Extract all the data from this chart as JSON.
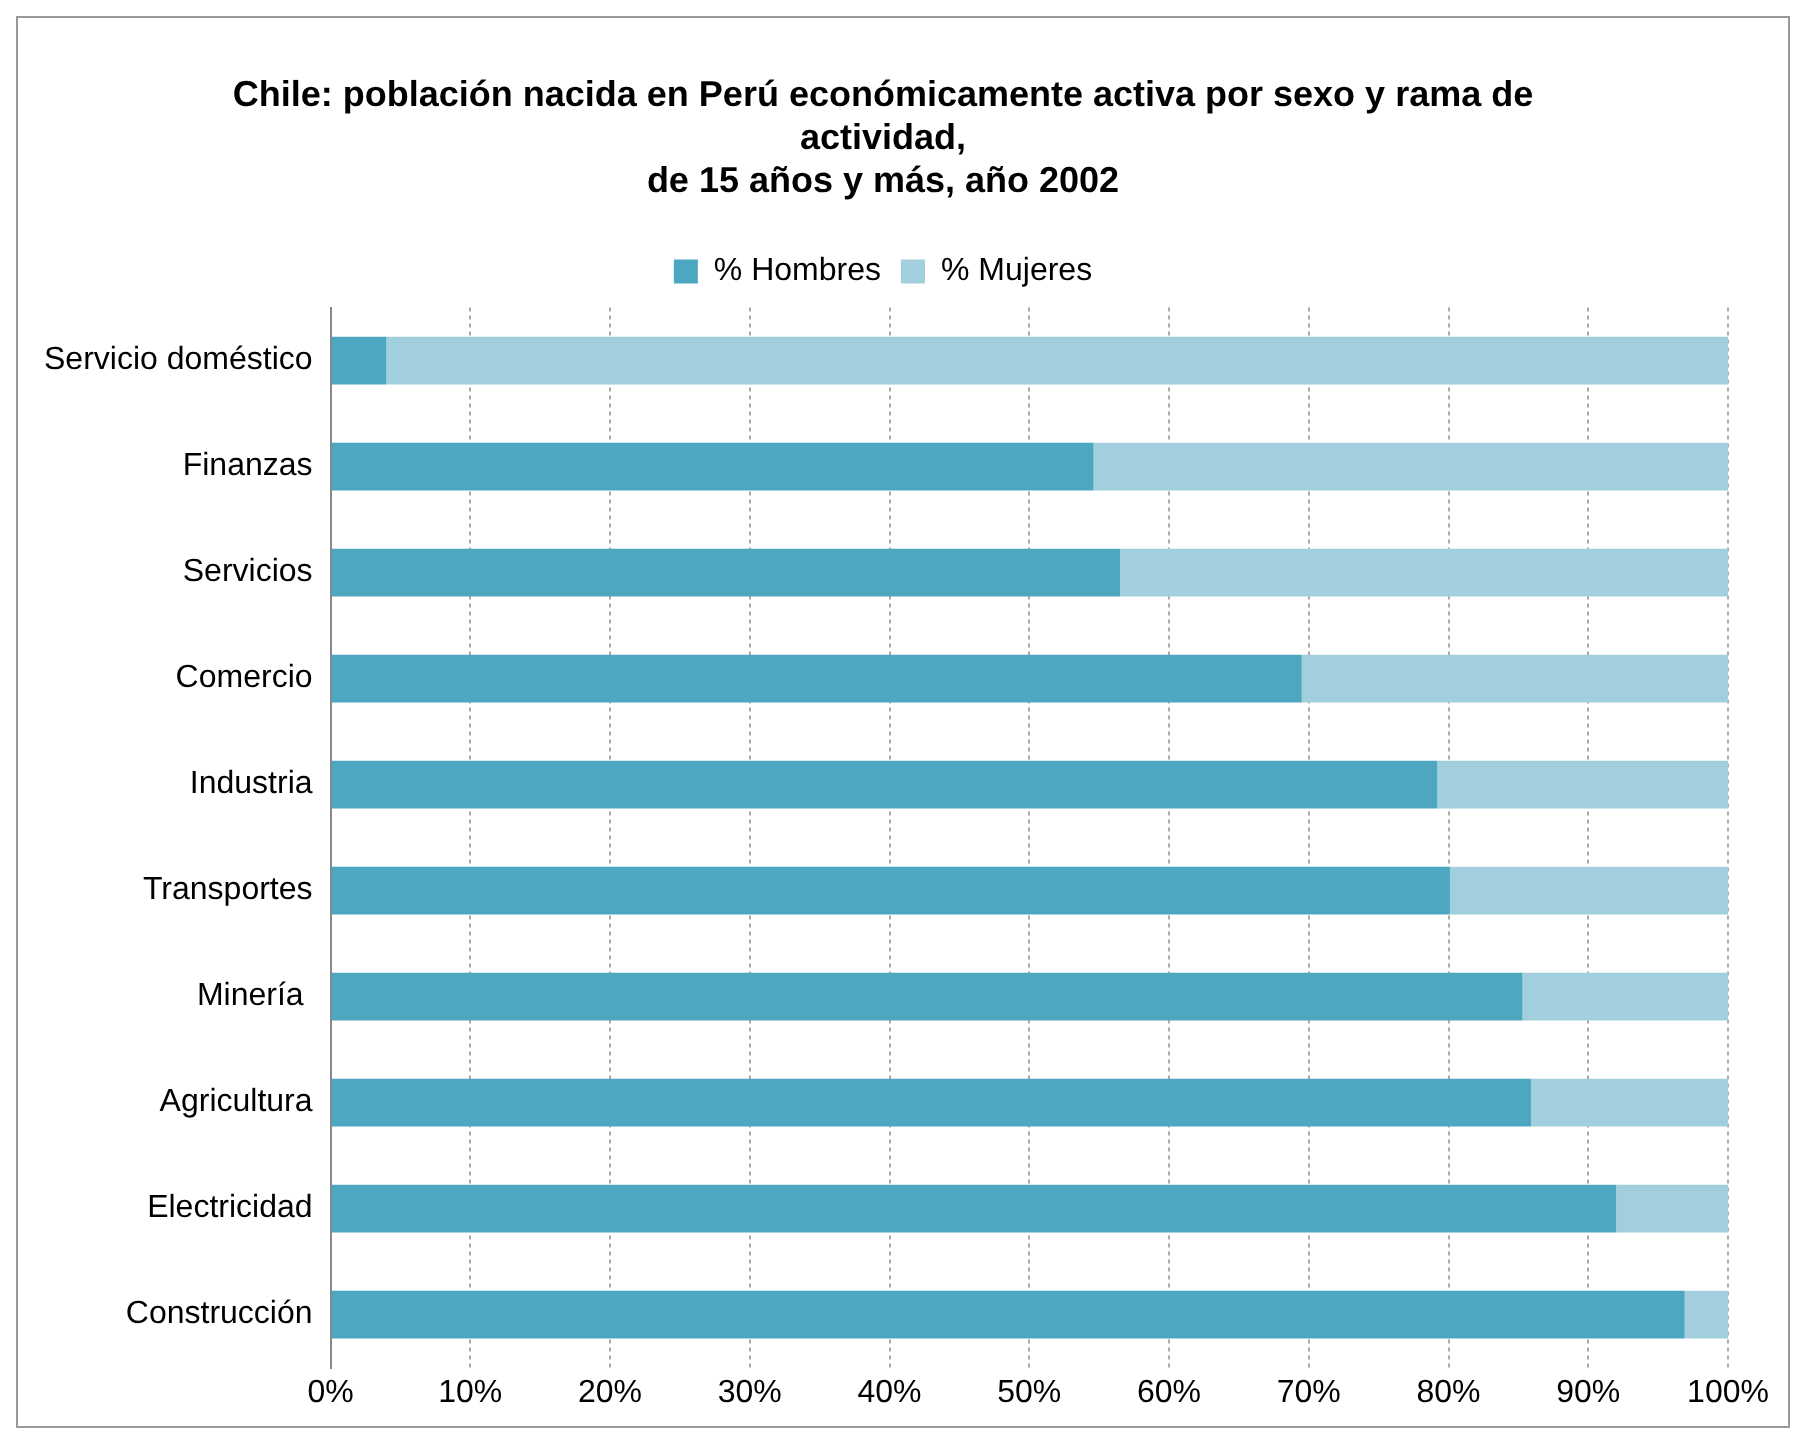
{
  "chart_data": {
    "type": "bar",
    "orientation": "horizontal",
    "stacked": true,
    "title": "Chile: población nacida en Perú económicamente activa por sexo y rama de actividad,\nde 15 años y más, año 2002",
    "categories": [
      "Servicio doméstico",
      "Finanzas",
      "Servicios",
      "Comercio",
      "Industria",
      "Transportes",
      "Minería ",
      "Agricultura",
      "Electricidad",
      "Construcción"
    ],
    "series": [
      {
        "name": "% Hombres",
        "color": "#4ea7c0",
        "values": [
          4,
          54.6,
          56.5,
          69.5,
          79.2,
          80.1,
          85.3,
          85.9,
          92,
          96.9
        ]
      },
      {
        "name": "% Mujeres",
        "color": "#a2cfdd",
        "values": [
          96,
          45.4,
          43.5,
          30.5,
          20.8,
          19.9,
          14.7,
          14.1,
          8,
          3.1
        ]
      }
    ],
    "xlim": [
      0,
      100
    ],
    "xticks": [
      {
        "value": 0,
        "label": "0%"
      },
      {
        "value": 10,
        "label": "10%"
      },
      {
        "value": 20,
        "label": "20%"
      },
      {
        "value": 30,
        "label": "30%"
      },
      {
        "value": 40,
        "label": "40%"
      },
      {
        "value": 50,
        "label": "50%"
      },
      {
        "value": 60,
        "label": "60%"
      },
      {
        "value": 70,
        "label": "70%"
      },
      {
        "value": 80,
        "label": "80%"
      },
      {
        "value": 90,
        "label": "90%"
      },
      {
        "value": 100,
        "label": "100%"
      }
    ],
    "grid": "x",
    "legend": "top"
  }
}
